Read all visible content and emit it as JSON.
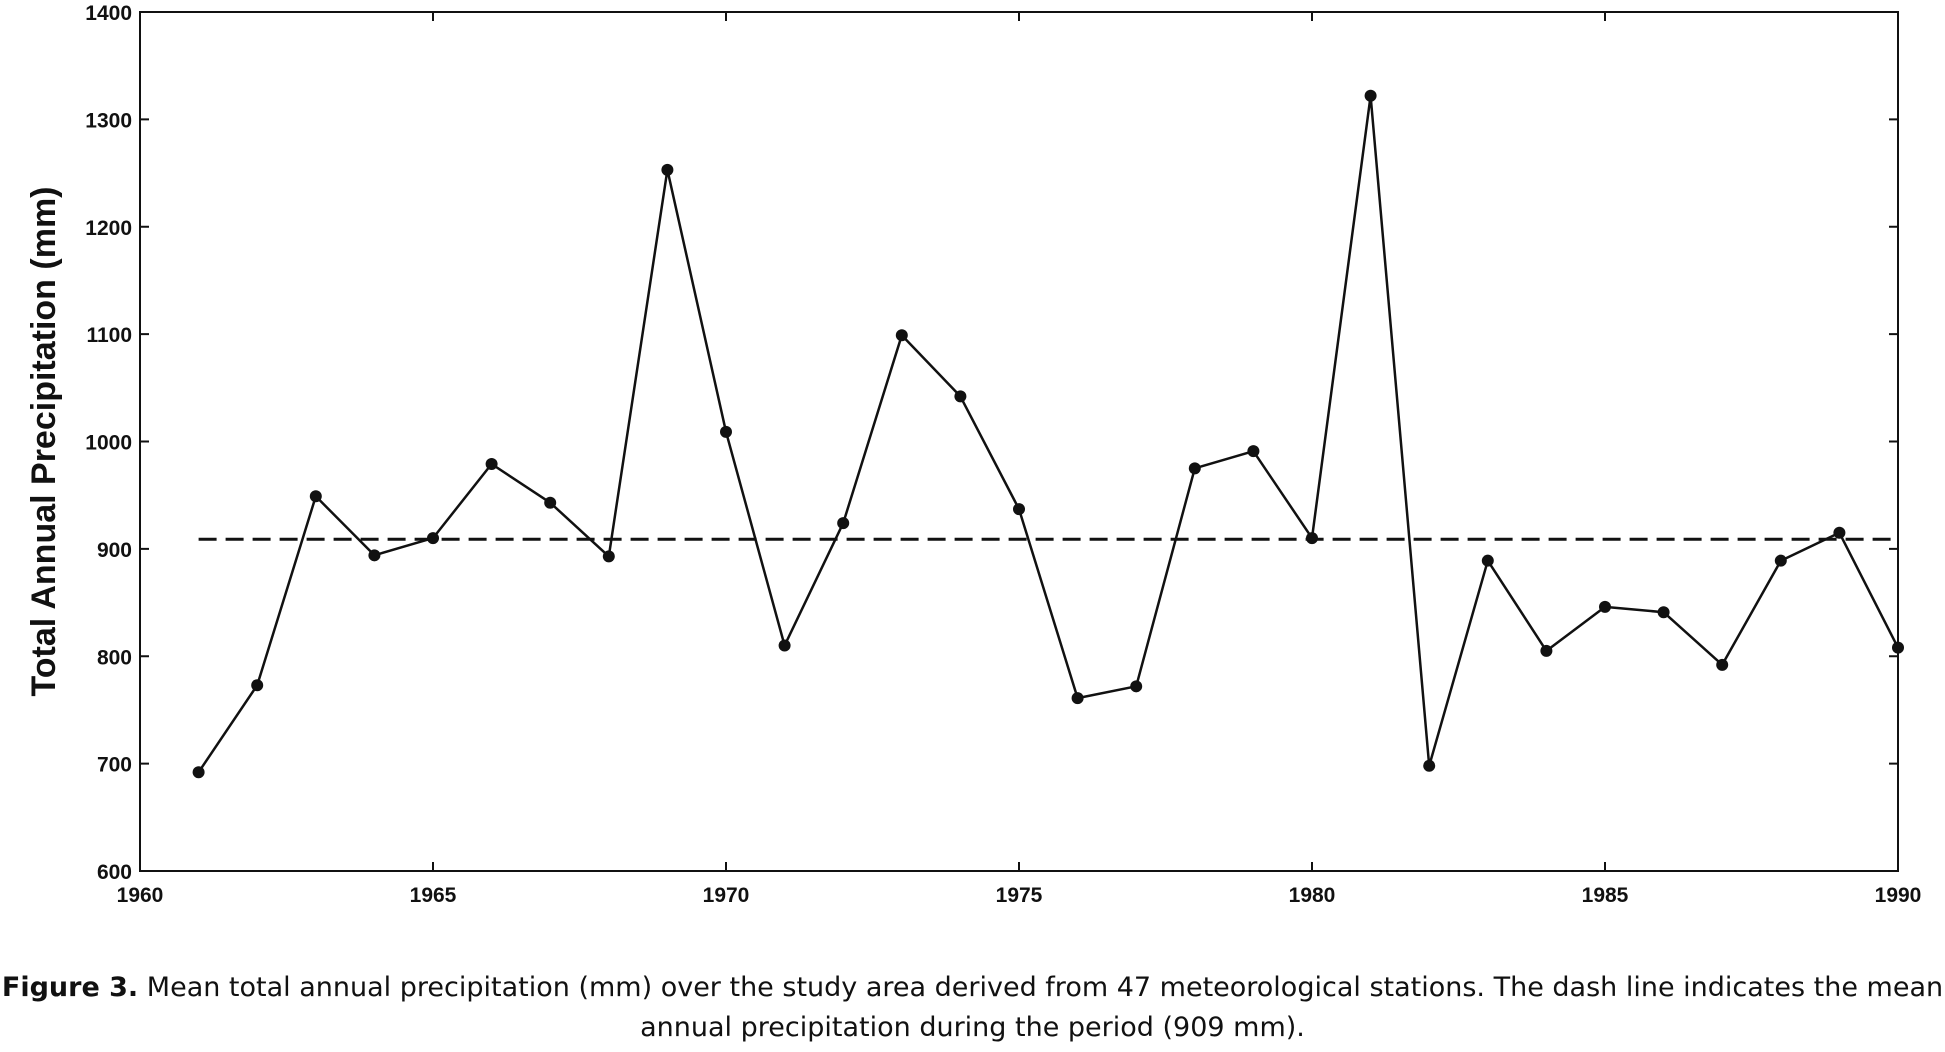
{
  "chart_data": {
    "type": "line",
    "title": "",
    "xlabel": "",
    "ylabel": "Total Annual Precipitation (mm)",
    "xlim": [
      1960,
      1990
    ],
    "ylim": [
      600,
      1400
    ],
    "xticks": [
      1960,
      1965,
      1970,
      1975,
      1980,
      1985,
      1990
    ],
    "yticks": [
      600,
      700,
      800,
      900,
      1000,
      1100,
      1200,
      1300,
      1400
    ],
    "grid": false,
    "series": [
      {
        "style": "solid-with-markers",
        "color": "#111111",
        "x": [
          1961,
          1962,
          1963,
          1964,
          1965,
          1966,
          1967,
          1968,
          1969,
          1970,
          1971,
          1972,
          1973,
          1974,
          1975,
          1976,
          1977,
          1978,
          1979,
          1980,
          1981,
          1982,
          1983,
          1984,
          1985,
          1986,
          1987,
          1988,
          1989,
          1990
        ],
        "y": [
          692,
          773,
          949,
          894,
          910,
          979,
          943,
          893,
          1253,
          1009,
          810,
          924,
          1099,
          1042,
          937,
          761,
          772,
          975,
          991,
          910,
          1322,
          698,
          889,
          805,
          846,
          841,
          792,
          889,
          915,
          808
        ]
      },
      {
        "style": "dashed",
        "color": "#111111",
        "x": [
          1961,
          1990
        ],
        "y": [
          909,
          909
        ]
      }
    ]
  },
  "caption": {
    "label": "Figure 3.",
    "text": " Mean total annual precipitation (mm) over the study area derived from 47 meteorological stations. The dash line indicates the mean annual precipitation during the period (909 mm)."
  }
}
